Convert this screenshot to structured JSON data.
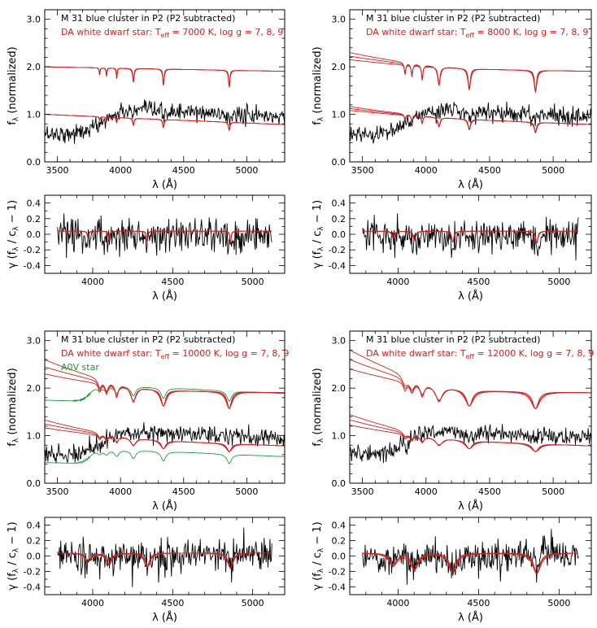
{
  "chart_data": [
    {
      "type": "line",
      "panel": "top-left",
      "title_line1": "M 31 blue cluster in P2 (P2 subtracted)",
      "title_line2": "DA white dwarf star: T",
      "teff_sub": "eff",
      "title_line2_rest": " = 7000 K, log g = 7, 8, 9",
      "xlabel": "λ  (Å)",
      "ylabel": "f",
      "ylabel_sub": "λ",
      "ylabel_rest": " (normalized)",
      "xlim": [
        3400,
        5300
      ],
      "ylim": [
        0,
        3.2
      ],
      "xticks": [
        "3500",
        "4000",
        "4500",
        "5000"
      ],
      "yticks": [
        "0.0",
        "1.0",
        "2.0",
        "3.0"
      ],
      "teff": 7000,
      "colors": {
        "observed": "#000000",
        "model": "#d42020"
      }
    },
    {
      "type": "line",
      "panel": "top-right",
      "title_line1": "M 31 blue cluster in P2 (P2 subtracted)",
      "title_line2": "DA white dwarf star: T",
      "teff_sub": "eff",
      "title_line2_rest": " = 8000 K, log g = 7, 8, 9",
      "xlabel": "λ  (Å)",
      "ylabel": "f",
      "ylabel_sub": "λ",
      "ylabel_rest": " (normalized)",
      "xlim": [
        3400,
        5300
      ],
      "ylim": [
        0,
        3.2
      ],
      "xticks": [
        "3500",
        "4000",
        "4500",
        "5000"
      ],
      "yticks": [
        "0.0",
        "1.0",
        "2.0",
        "3.0"
      ],
      "teff": 8000,
      "colors": {
        "observed": "#000000",
        "model": "#d42020"
      }
    },
    {
      "type": "line",
      "panel": "upper-left-residual",
      "xlabel": "λ  (Å)",
      "ylabel": "γ (f",
      "ylabel_sub1": "λ",
      "ylabel_mid": " / c",
      "ylabel_sub2": "λ",
      "ylabel_rest": " − 1)",
      "xlim": [
        3700,
        5200
      ],
      "ylim": [
        -0.5,
        0.5
      ],
      "xticks": [
        "4000",
        "4500",
        "5000"
      ],
      "yticks": [
        "0.4",
        "0.2",
        "0.0",
        "-0.2",
        "-0.4"
      ],
      "teff": 7000,
      "colors": {
        "observed": "#000000",
        "model": "#d42020"
      }
    },
    {
      "type": "line",
      "panel": "upper-right-residual",
      "xlabel": "λ  (Å)",
      "ylabel": "γ (f",
      "ylabel_sub1": "λ",
      "ylabel_mid": " / c",
      "ylabel_sub2": "λ",
      "ylabel_rest": " − 1)",
      "xlim": [
        3700,
        5200
      ],
      "ylim": [
        -0.5,
        0.5
      ],
      "xticks": [
        "4000",
        "4500",
        "5000"
      ],
      "yticks": [
        "0.4",
        "0.2",
        "0.0",
        "-0.2",
        "-0.4"
      ],
      "teff": 8000,
      "colors": {
        "observed": "#000000",
        "model": "#d42020"
      }
    },
    {
      "type": "line",
      "panel": "bottom-left",
      "title_line1": "M 31 blue cluster in P2 (P2 subtracted)",
      "title_line2": "DA white dwarf star: T",
      "teff_sub": "eff",
      "title_line2_rest": " = 10000 K, log g = 7, 8, 9",
      "extra_label": "A0V star",
      "xlabel": "λ  (Å)",
      "ylabel": "f",
      "ylabel_sub": "λ",
      "ylabel_rest": " (normalized)",
      "xlim": [
        3400,
        5300
      ],
      "ylim": [
        0,
        3.2
      ],
      "xticks": [
        "3500",
        "4000",
        "4500",
        "5000"
      ],
      "yticks": [
        "0.0",
        "1.0",
        "2.0",
        "3.0"
      ],
      "teff": 10000,
      "colors": {
        "observed": "#000000",
        "model": "#d42020",
        "a0v": "#1e9a3a"
      }
    },
    {
      "type": "line",
      "panel": "bottom-right",
      "title_line1": "M 31 blue cluster in P2 (P2 subtracted)",
      "title_line2": "DA white dwarf star: T",
      "teff_sub": "eff",
      "title_line2_rest": " = 12000 K, log g = 7, 8, 9",
      "xlabel": "λ  (Å)",
      "ylabel": "f",
      "ylabel_sub": "λ",
      "ylabel_rest": " (normalized)",
      "xlim": [
        3400,
        5300
      ],
      "ylim": [
        0,
        3.2
      ],
      "xticks": [
        "3500",
        "4000",
        "4500",
        "5000"
      ],
      "yticks": [
        "0.0",
        "1.0",
        "2.0",
        "3.0"
      ],
      "teff": 12000,
      "colors": {
        "observed": "#000000",
        "model": "#d42020"
      }
    },
    {
      "type": "line",
      "panel": "lower-left-residual",
      "xlabel": "λ  (Å)",
      "ylabel": "γ (f",
      "ylabel_sub1": "λ",
      "ylabel_mid": " / c",
      "ylabel_sub2": "λ",
      "ylabel_rest": " − 1)",
      "xlim": [
        3700,
        5200
      ],
      "ylim": [
        -0.5,
        0.5
      ],
      "xticks": [
        "4000",
        "4500",
        "5000"
      ],
      "yticks": [
        "0.4",
        "0.2",
        "0.0",
        "-0.2",
        "-0.4"
      ],
      "teff": 10000,
      "colors": {
        "observed": "#000000",
        "model": "#d42020"
      }
    },
    {
      "type": "line",
      "panel": "lower-right-residual",
      "xlabel": "λ  (Å)",
      "ylabel": "γ (f",
      "ylabel_sub1": "λ",
      "ylabel_mid": " / c",
      "ylabel_sub2": "λ",
      "ylabel_rest": " − 1)",
      "xlim": [
        3700,
        5200
      ],
      "ylim": [
        -0.5,
        0.5
      ],
      "xticks": [
        "4000",
        "4500",
        "5000"
      ],
      "yticks": [
        "0.4",
        "0.2",
        "0.0",
        "-0.2",
        "-0.4"
      ],
      "teff": 12000,
      "colors": {
        "observed": "#000000",
        "model": "#d42020"
      }
    }
  ]
}
